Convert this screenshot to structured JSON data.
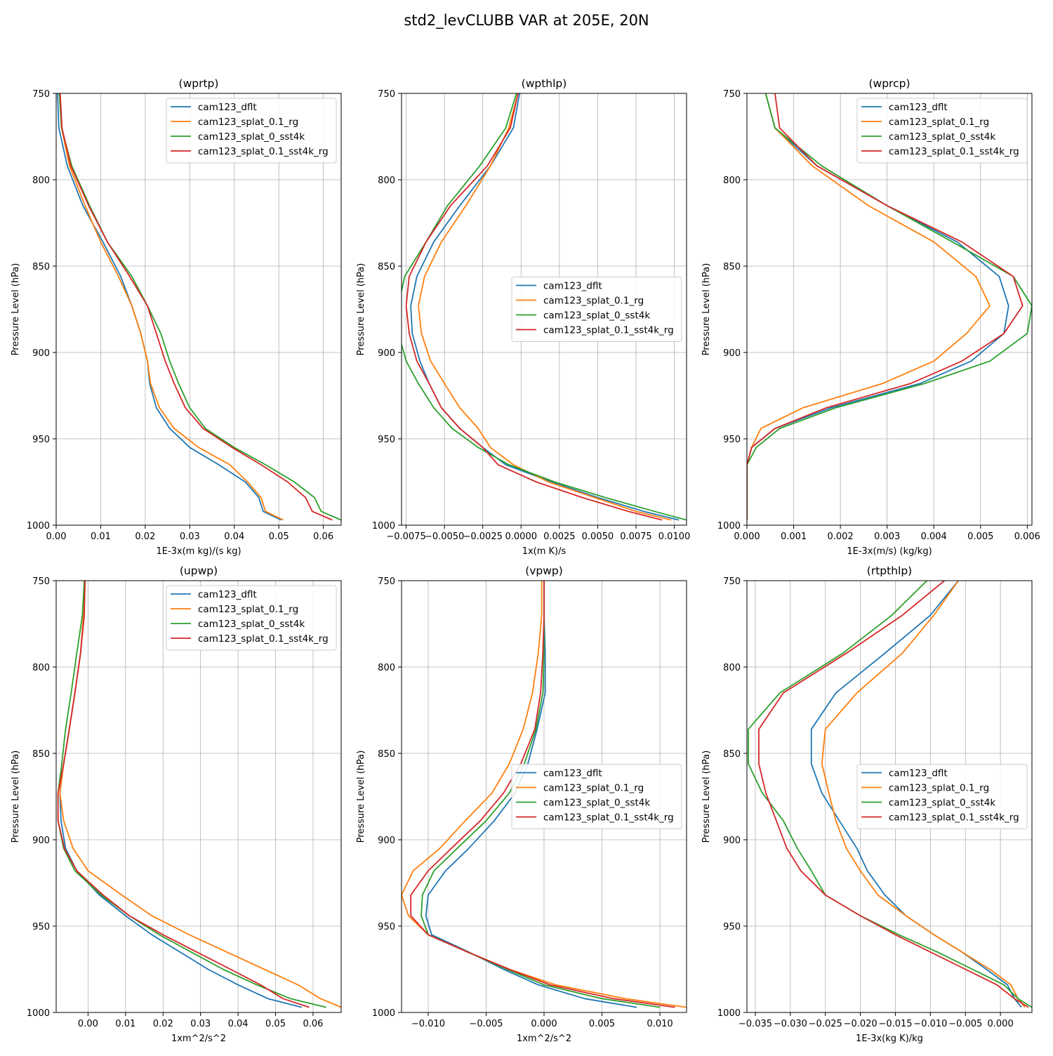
{
  "suptitle": "std2_levCLUBB VAR at 205E, 20N",
  "series_names": [
    "cam123_dflt",
    "cam123_splat_0.1_rg",
    "cam123_splat_0_sst4k",
    "cam123_splat_0.1_sst4k_rg"
  ],
  "series_colors": [
    "#1f77b4",
    "#ff7f0e",
    "#2ca02c",
    "#d62728"
  ],
  "levels": [
    750,
    770,
    792,
    815,
    836,
    856,
    873,
    889,
    905,
    918,
    932,
    944,
    955,
    965,
    975,
    984,
    992,
    997
  ],
  "chart_data": [
    {
      "type": "line",
      "title": "(wprtp)",
      "xlabel": "1E-3x(m kg)/(s kg)",
      "ylabel": "Pressure Level (hPa)",
      "xlim": [
        0.0,
        0.064
      ],
      "ylim": [
        1000,
        750
      ],
      "xticks": [
        0.0,
        0.01,
        0.02,
        0.03,
        0.04,
        0.05,
        0.06
      ],
      "xtick_labels": [
        "0.00",
        "0.01",
        "0.02",
        "0.03",
        "0.04",
        "0.05",
        "0.06"
      ],
      "yticks": [
        750,
        800,
        850,
        900,
        950,
        1000
      ],
      "legend_position": "upper right",
      "grid": true,
      "series": [
        {
          "name": "cam123_dflt",
          "values": [
            0.0003,
            0.0006,
            0.0025,
            0.006,
            0.0105,
            0.0145,
            0.017,
            0.019,
            0.0205,
            0.021,
            0.0225,
            0.0255,
            0.03,
            0.0365,
            0.0425,
            0.0455,
            0.0465,
            0.0505
          ]
        },
        {
          "name": "cam123_splat_0.1_rg",
          "values": [
            0.0008,
            0.0012,
            0.003,
            0.0065,
            0.01,
            0.014,
            0.017,
            0.019,
            0.0205,
            0.0212,
            0.0232,
            0.0265,
            0.032,
            0.039,
            0.043,
            0.046,
            0.047,
            0.051
          ]
        },
        {
          "name": "cam123_splat_0_sst4k",
          "values": [
            0.0007,
            0.0012,
            0.0035,
            0.0075,
            0.0115,
            0.017,
            0.0205,
            0.0235,
            0.0255,
            0.0275,
            0.03,
            0.0335,
            0.04,
            0.047,
            0.0535,
            0.058,
            0.0595,
            0.064
          ]
        },
        {
          "name": "cam123_splat_0.1_sst4k_rg",
          "values": [
            0.0009,
            0.0013,
            0.0033,
            0.0073,
            0.0115,
            0.0165,
            0.0205,
            0.0225,
            0.0245,
            0.0265,
            0.029,
            0.033,
            0.0395,
            0.046,
            0.052,
            0.056,
            0.0575,
            0.062
          ]
        }
      ]
    },
    {
      "type": "line",
      "title": "(wpthlp)",
      "xlabel": "1x(m K)/s",
      "ylabel": "Pressure Level (hPa)",
      "xlim": [
        -0.0078,
        0.0108
      ],
      "ylim": [
        1000,
        750
      ],
      "xticks": [
        -0.0075,
        -0.005,
        -0.0025,
        0.0,
        0.0025,
        0.005,
        0.0075,
        0.01
      ],
      "xtick_labels": [
        "−0.0075",
        "−0.0050",
        "−0.0025",
        "0.0000",
        "0.0025",
        "0.0050",
        "0.0075",
        "0.0100"
      ],
      "yticks": [
        750,
        800,
        850,
        900,
        950,
        1000
      ],
      "legend_position": "center right",
      "grid": true,
      "series": [
        {
          "name": "cam123_dflt",
          "values": [
            -0.0001,
            -0.0005,
            -0.002,
            -0.004,
            -0.0057,
            -0.0068,
            -0.0072,
            -0.0071,
            -0.0066,
            -0.006,
            -0.0052,
            -0.004,
            -0.0025,
            -0.001,
            0.002,
            0.005,
            0.008,
            0.0103
          ]
        },
        {
          "name": "cam123_splat_0.1_rg",
          "values": [
            -0.0002,
            -0.0008,
            -0.002,
            -0.0036,
            -0.0052,
            -0.0063,
            -0.0067,
            -0.0065,
            -0.0059,
            -0.005,
            -0.004,
            -0.0028,
            -0.002,
            -0.0005,
            0.0018,
            0.0048,
            0.0075,
            0.0098
          ]
        },
        {
          "name": "cam123_splat_0_sst4k",
          "values": [
            -0.0003,
            -0.001,
            -0.0027,
            -0.0048,
            -0.0062,
            -0.0076,
            -0.008,
            -0.008,
            -0.0075,
            -0.0067,
            -0.0057,
            -0.0045,
            -0.0028,
            -0.0008,
            0.0022,
            0.0055,
            0.0087,
            0.0108
          ]
        },
        {
          "name": "cam123_splat_0.1_sst4k_rg",
          "values": [
            -0.0002,
            -0.0007,
            -0.0022,
            -0.0046,
            -0.0062,
            -0.0073,
            -0.0075,
            -0.0073,
            -0.0068,
            -0.006,
            -0.0052,
            -0.004,
            -0.0025,
            -0.0015,
            0.001,
            0.004,
            0.007,
            0.0092
          ]
        }
      ]
    },
    {
      "type": "line",
      "title": "(wprcp)",
      "xlabel": "1E-3x(m/s) (kg/kg)",
      "ylabel": "Pressure Level (hPa)",
      "xlim": [
        0.0,
        0.0061
      ],
      "ylim": [
        1000,
        750
      ],
      "xticks": [
        0.0,
        0.001,
        0.002,
        0.003,
        0.004,
        0.005,
        0.006
      ],
      "xtick_labels": [
        "0.000",
        "0.001",
        "0.002",
        "0.003",
        "0.004",
        "0.005",
        "0.006"
      ],
      "yticks": [
        750,
        800,
        850,
        900,
        950,
        1000
      ],
      "legend_position": "upper right",
      "grid": true,
      "series": [
        {
          "name": "cam123_dflt",
          "values": [
            0.0004,
            0.0006,
            0.0015,
            0.003,
            0.0045,
            0.0054,
            0.0056,
            0.0055,
            0.0048,
            0.0037,
            0.0018,
            0.0006,
            0.0001,
            0.0,
            0.0,
            0.0,
            0.0,
            0.0
          ]
        },
        {
          "name": "cam123_splat_0.1_rg",
          "values": [
            0.0004,
            0.0006,
            0.0014,
            0.0026,
            0.004,
            0.0049,
            0.0052,
            0.0047,
            0.004,
            0.0029,
            0.0012,
            0.0003,
            0.0001,
            0.0,
            0.0,
            0.0,
            0.0,
            0.0
          ]
        },
        {
          "name": "cam123_splat_0_sst4k",
          "values": [
            0.0004,
            0.0006,
            0.0016,
            0.003,
            0.0044,
            0.0057,
            0.0061,
            0.006,
            0.0052,
            0.0038,
            0.0019,
            0.0007,
            0.0002,
            0.0,
            0.0,
            0.0,
            0.0,
            0.0
          ]
        },
        {
          "name": "cam123_splat_0.1_sst4k_rg",
          "values": [
            0.0006,
            0.0007,
            0.0015,
            0.003,
            0.0046,
            0.0057,
            0.0059,
            0.0055,
            0.0046,
            0.0035,
            0.0017,
            0.0006,
            0.0001,
            0.0,
            0.0,
            0.0,
            0.0,
            0.0
          ]
        }
      ]
    },
    {
      "type": "line",
      "title": "(upwp)",
      "xlabel": "1xm^2/s^2",
      "ylabel": "Pressure Level (hPa)",
      "xlim": [
        -0.0085,
        0.0675
      ],
      "ylim": [
        1000,
        750
      ],
      "xticks": [
        0.0,
        0.01,
        0.02,
        0.03,
        0.04,
        0.05,
        0.06
      ],
      "xtick_labels": [
        "0.00",
        "0.01",
        "0.02",
        "0.03",
        "0.04",
        "0.05",
        "0.06"
      ],
      "yticks": [
        750,
        800,
        850,
        900,
        950,
        1000
      ],
      "legend_position": "upper right",
      "grid": true,
      "series": [
        {
          "name": "cam123_dflt",
          "values": [
            -0.0008,
            -0.0012,
            -0.002,
            -0.0035,
            -0.005,
            -0.0065,
            -0.0075,
            -0.0072,
            -0.006,
            -0.003,
            0.003,
            0.01,
            0.017,
            0.0245,
            0.032,
            0.04,
            0.048,
            0.057
          ]
        },
        {
          "name": "cam123_splat_0.1_rg",
          "values": [
            -0.0008,
            -0.0012,
            -0.002,
            -0.0035,
            -0.005,
            -0.0065,
            -0.0075,
            -0.0065,
            -0.004,
            0.0,
            0.009,
            0.017,
            0.027,
            0.037,
            0.047,
            0.056,
            0.062,
            0.0675
          ]
        },
        {
          "name": "cam123_splat_0_sst4k",
          "values": [
            -0.001,
            -0.0015,
            -0.003,
            -0.0045,
            -0.006,
            -0.007,
            -0.008,
            -0.008,
            -0.0065,
            -0.0035,
            0.0035,
            0.011,
            0.019,
            0.0275,
            0.036,
            0.045,
            0.054,
            0.0635
          ]
        },
        {
          "name": "cam123_splat_0.1_sst4k_rg",
          "values": [
            -0.0008,
            -0.001,
            -0.002,
            -0.0035,
            -0.005,
            -0.0065,
            -0.008,
            -0.008,
            -0.0063,
            -0.003,
            0.004,
            0.011,
            0.02,
            0.029,
            0.038,
            0.046,
            0.052,
            0.059
          ]
        }
      ]
    },
    {
      "type": "line",
      "title": "(vpwp)",
      "xlabel": "1xm^2/s^2",
      "ylabel": "Pressure Level (hPa)",
      "xlim": [
        -0.0123,
        0.0123
      ],
      "ylim": [
        1000,
        750
      ],
      "xticks": [
        -0.01,
        -0.005,
        0.0,
        0.005,
        0.01
      ],
      "xtick_labels": [
        "−0.010",
        "−0.005",
        "0.000",
        "0.005",
        "0.010"
      ],
      "yticks": [
        750,
        800,
        850,
        900,
        950,
        1000
      ],
      "legend_position": "center right",
      "grid": true,
      "series": [
        {
          "name": "cam123_dflt",
          "values": [
            0.0,
            0.0,
            0.0001,
            0.0001,
            -0.0006,
            -0.0014,
            -0.0025,
            -0.0043,
            -0.0065,
            -0.0085,
            -0.01,
            -0.0102,
            -0.0097,
            -0.0065,
            -0.0035,
            -0.0005,
            0.0035,
            0.008
          ]
        },
        {
          "name": "cam123_splat_0.1_rg",
          "values": [
            -0.0002,
            -0.0002,
            -0.0005,
            -0.001,
            -0.0018,
            -0.003,
            -0.0045,
            -0.0068,
            -0.009,
            -0.0113,
            -0.0123,
            -0.0117,
            -0.01,
            -0.0066,
            -0.003,
            0.001,
            0.007,
            0.0123
          ]
        },
        {
          "name": "cam123_splat_0_sst4k",
          "values": [
            0.0,
            0.0,
            0.0,
            -0.0001,
            -0.0007,
            -0.0017,
            -0.003,
            -0.005,
            -0.0075,
            -0.0095,
            -0.0105,
            -0.0106,
            -0.01,
            -0.0066,
            -0.0032,
            0.0,
            0.005,
            0.01
          ]
        },
        {
          "name": "cam123_splat_0.1_sst4k_rg",
          "values": [
            0.0,
            0.0,
            -0.0001,
            -0.0003,
            -0.0008,
            -0.002,
            -0.0035,
            -0.0055,
            -0.008,
            -0.01,
            -0.0115,
            -0.0115,
            -0.01,
            -0.0066,
            -0.003,
            0.0005,
            0.006,
            0.0113
          ]
        }
      ]
    },
    {
      "type": "line",
      "title": "(rtpthlp)",
      "xlabel": "1E-3x(kg K)/kg",
      "ylabel": "Pressure Level (hPa)",
      "xlim": [
        -0.0362,
        0.0045
      ],
      "ylim": [
        1000,
        750
      ],
      "xticks": [
        -0.035,
        -0.03,
        -0.025,
        -0.02,
        -0.015,
        -0.01,
        -0.005,
        0.0
      ],
      "xtick_labels": [
        "−0.035",
        "−0.030",
        "−0.025",
        "−0.020",
        "−0.015",
        "−0.010",
        "−0.005",
        "0.000"
      ],
      "yticks": [
        750,
        800,
        850,
        900,
        950,
        1000
      ],
      "legend_position": "center right",
      "grid": true,
      "series": [
        {
          "name": "cam123_dflt",
          "values": [
            -0.006,
            -0.01,
            -0.0165,
            -0.0235,
            -0.027,
            -0.027,
            -0.0255,
            -0.023,
            -0.0205,
            -0.019,
            -0.0165,
            -0.0135,
            -0.0095,
            -0.0055,
            -0.002,
            0.001,
            0.002,
            0.003
          ]
        },
        {
          "name": "cam123_splat_0.1_rg",
          "values": [
            -0.006,
            -0.0095,
            -0.014,
            -0.0205,
            -0.025,
            -0.0255,
            -0.0245,
            -0.0235,
            -0.022,
            -0.02,
            -0.0175,
            -0.0135,
            -0.0095,
            -0.0055,
            -0.0015,
            0.0015,
            0.0025,
            0.0035
          ]
        },
        {
          "name": "cam123_splat_0_sst4k",
          "values": [
            -0.0105,
            -0.0155,
            -0.0225,
            -0.0315,
            -0.036,
            -0.036,
            -0.034,
            -0.031,
            -0.029,
            -0.027,
            -0.025,
            -0.02,
            -0.0145,
            -0.009,
            -0.004,
            0.0005,
            0.0025,
            0.0045
          ]
        },
        {
          "name": "cam123_splat_0.1_sst4k_rg",
          "values": [
            -0.008,
            -0.014,
            -0.022,
            -0.031,
            -0.0345,
            -0.0345,
            -0.0335,
            -0.032,
            -0.0305,
            -0.0285,
            -0.025,
            -0.02,
            -0.015,
            -0.01,
            -0.005,
            -0.0005,
            0.002,
            0.004
          ]
        }
      ]
    }
  ]
}
